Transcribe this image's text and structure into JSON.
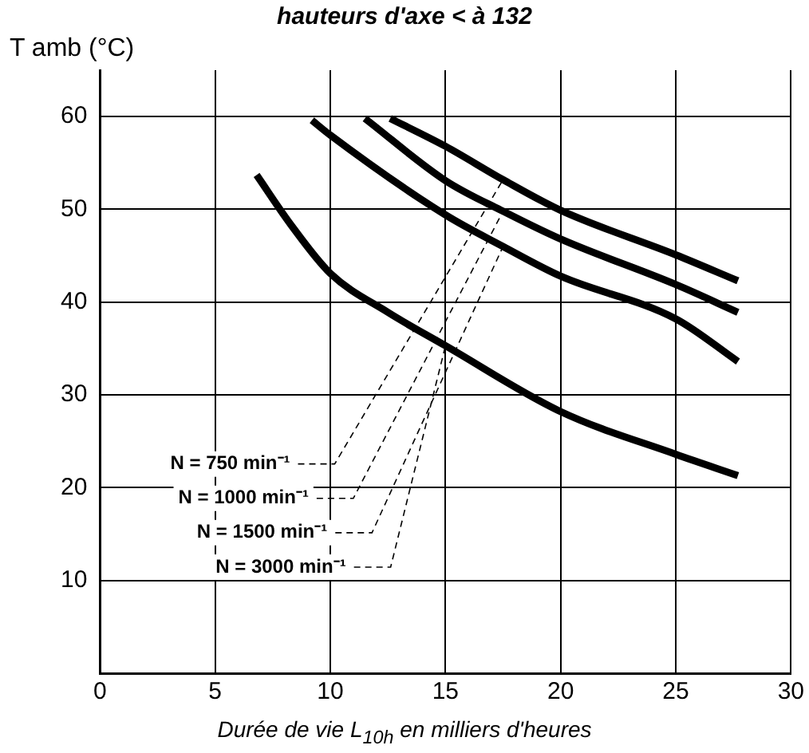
{
  "chart_data": {
    "type": "line",
    "title": "hauteurs d'axe < à 132",
    "xlabel": "Durée de vie L$_{10h}$ en milliers d'heures",
    "ylabel": "T amb (°C)",
    "xlim": [
      0,
      30
    ],
    "xticks": [
      0,
      5,
      10,
      15,
      20,
      25,
      30
    ],
    "ylim": [
      0,
      65
    ],
    "yticks": [
      10,
      20,
      30,
      40,
      50,
      60
    ],
    "grid": true,
    "legend": false,
    "marker": "none",
    "line_style": "solid",
    "series": [
      {
        "name": "N = 750 min⁻¹",
        "color": "#000000",
        "x": [
          12.6,
          15,
          17.5,
          20,
          25,
          27.7
        ],
        "values": [
          59.8,
          56.8,
          53.2,
          49.9,
          45.1,
          42.3
        ]
      },
      {
        "name": "N = 1000 min⁻¹",
        "color": "#000000",
        "x": [
          11.5,
          15,
          17.5,
          20,
          25,
          27.7
        ],
        "values": [
          59.8,
          53.1,
          49.8,
          46.8,
          41.9,
          38.9
        ]
      },
      {
        "name": "N = 1500 min⁻¹",
        "color": "#000000",
        "x": [
          9.2,
          10,
          15,
          17.5,
          20,
          25,
          27.7
        ],
        "values": [
          59.6,
          58,
          49.4,
          46,
          42.8,
          38.2,
          33.6
        ]
      },
      {
        "name": "N = 3000 min⁻¹",
        "color": "#000000",
        "x": [
          6.8,
          8.3,
          10,
          12.5,
          15,
          20,
          25,
          27.7
        ],
        "values": [
          53.7,
          48.3,
          43.1,
          38.9,
          35.3,
          28.2,
          23.6,
          21.3
        ]
      }
    ]
  }
}
